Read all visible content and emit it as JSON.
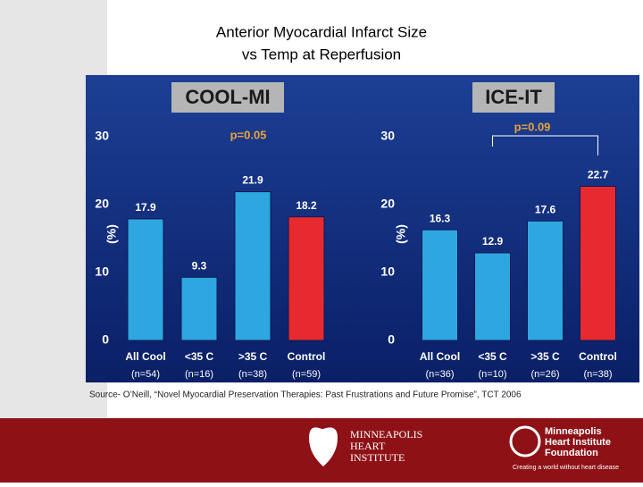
{
  "header": {
    "title_lines": [
      "Anterior Myocardial Infarct Size",
      "vs Temp at Reperfusion"
    ]
  },
  "chart_data": [
    {
      "type": "bar",
      "title": "COOL-MI",
      "annotation": "p=0.05",
      "ylabel": "(%)",
      "categories": [
        "All Cool",
        "<35 C",
        ">35 C",
        "Control"
      ],
      "category_notes": [
        "(n=54)",
        "(n=16)",
        "(n=38)",
        "(n=59)"
      ],
      "values": [
        17.9,
        9.3,
        21.9,
        18.2
      ],
      "colors": [
        "#2ea6e0",
        "#2ea6e0",
        "#2ea6e0",
        "#e62a2f"
      ],
      "ylim": [
        0,
        30
      ],
      "yticks": [
        0,
        10,
        20,
        30
      ]
    },
    {
      "type": "bar",
      "title": "ICE-IT",
      "annotation": "p=0.09",
      "ylabel": "(%)",
      "categories": [
        "All Cool",
        "<35 C",
        ">35 C",
        "Control"
      ],
      "category_notes": [
        "(n=36)",
        "(n=10)",
        "(n=26)",
        "(n=38)"
      ],
      "values": [
        16.3,
        12.9,
        17.6,
        22.7
      ],
      "colors": [
        "#2ea6e0",
        "#2ea6e0",
        "#2ea6e0",
        "#e62a2f"
      ],
      "ylim": [
        0,
        30
      ],
      "yticks": [
        0,
        10,
        20,
        30
      ]
    }
  ],
  "source": "Source-  O’Neill, “Novel Myocardial Preservation Therapies: Past Frustrations and Future Promise”, TCT 2006",
  "footer": {
    "left_logo": [
      "MINNEAPOLIS",
      "HEART",
      "INSTITUTE"
    ],
    "right_logo": [
      "Minneapolis",
      "Heart Institute",
      "Foundation"
    ],
    "tagline": "Creating a world without heart disease"
  }
}
